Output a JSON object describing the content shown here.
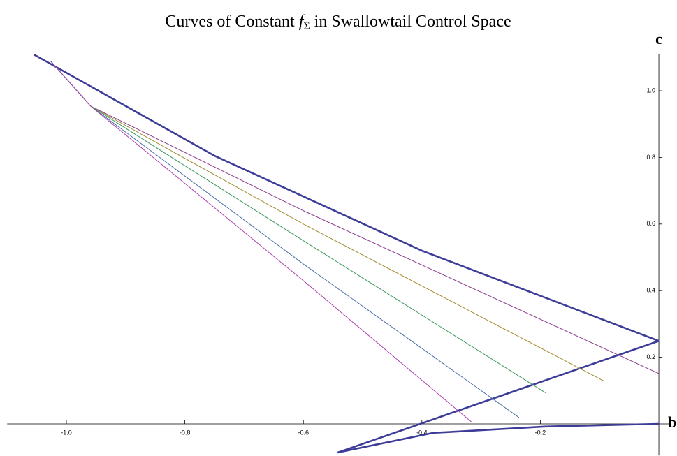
{
  "chart_data": {
    "type": "line",
    "title_parts": [
      "Curves of Constant ",
      "f",
      "Σ",
      " in Swallowtail Control Space"
    ],
    "x_label": "b",
    "y_label": "c",
    "xlim": [
      -1.1,
      0.02
    ],
    "ylim": [
      -0.095,
      1.12
    ],
    "xticks": [
      {
        "value": -1.0,
        "label": "-1.0"
      },
      -0.8,
      -0.6,
      -0.4,
      -0.2
    ],
    "yticks": [
      0.2,
      0.4,
      0.6,
      {
        "value": 1.0,
        "label": "1.0"
      },
      0.8
    ],
    "series": [
      {
        "color": "#3d3d99",
        "line_width": 2.6,
        "x": [
          -1.055,
          -0.75,
          -0.4,
          0
        ],
        "values": [
          1.109,
          0.805,
          0.52,
          0.249
        ]
      },
      {
        "color": "#3d3d99",
        "line_width": 2.6,
        "x": [
          0,
          -0.542
        ],
        "values": [
          0.249,
          -0.086
        ]
      },
      {
        "color": "#3d3d99",
        "line_width": 2.6,
        "x": [
          -0.542,
          -0.381,
          -0.192,
          0
        ],
        "values": [
          -0.086,
          -0.027,
          -0.008,
          0
        ]
      },
      {
        "color": "#8e3c8e",
        "line_width": 1,
        "x": [
          -1.026,
          -0.959,
          -0.6,
          0
        ],
        "values": [
          1.088,
          0.954,
          0.64,
          0.151
        ]
      },
      {
        "color": "#a08b30",
        "line_width": 1,
        "x": [
          -1.026,
          -0.959,
          -0.6,
          -0.092
        ],
        "values": [
          1.088,
          0.954,
          0.6,
          0.128
        ]
      },
      {
        "color": "#3f9a5e",
        "line_width": 1,
        "x": [
          -1.026,
          -0.959,
          -0.6,
          -0.19
        ],
        "values": [
          1.088,
          0.954,
          0.55,
          0.092
        ]
      },
      {
        "color": "#4a6fa8",
        "line_width": 1,
        "x": [
          -1.026,
          -0.959,
          -0.6,
          -0.236
        ],
        "values": [
          1.088,
          0.954,
          0.48,
          0.019
        ]
      },
      {
        "color": "#b040b0",
        "line_width": 1,
        "x": [
          -1.026,
          -0.959,
          -0.6,
          -0.315
        ],
        "values": [
          1.088,
          0.954,
          0.43,
          0.004
        ]
      }
    ]
  }
}
